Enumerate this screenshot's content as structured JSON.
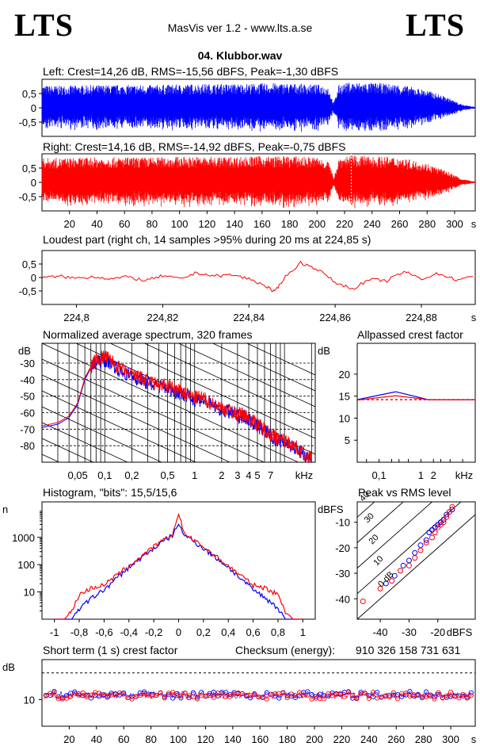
{
  "header": {
    "logo_left": "LTS",
    "logo_right": "LTS",
    "app_title": "MasVis ver 1.2 - www.lts.a.se",
    "file_name": "04. Klubbor.wav"
  },
  "colors": {
    "left": "#0000ff",
    "right": "#ff0000",
    "axis": "#000000"
  },
  "chart_data": [
    {
      "id": "left_waveform",
      "type": "area",
      "title": "Left: Crest=14,26 dB, RMS=-15,56 dBFS, Peak=-1,30 dBFS",
      "yticks": [
        "0,5",
        "0",
        "-0,5"
      ],
      "ylim": [
        -1,
        1
      ],
      "xlim": [
        0,
        315
      ],
      "envelope_points": [
        [
          0,
          0.78
        ],
        [
          20,
          0.78
        ],
        [
          40,
          0.8
        ],
        [
          60,
          0.8
        ],
        [
          80,
          0.8
        ],
        [
          100,
          0.82
        ],
        [
          120,
          0.84
        ],
        [
          140,
          0.84
        ],
        [
          160,
          0.86
        ],
        [
          180,
          0.86
        ],
        [
          200,
          0.82
        ],
        [
          208,
          0.75
        ],
        [
          212,
          0.15
        ],
        [
          216,
          0.82
        ],
        [
          224,
          0.9
        ],
        [
          240,
          0.88
        ],
        [
          260,
          0.82
        ],
        [
          280,
          0.62
        ],
        [
          295,
          0.36
        ],
        [
          305,
          0.12
        ],
        [
          315,
          0.03
        ]
      ],
      "grid": false
    },
    {
      "id": "right_waveform",
      "type": "area",
      "title": "Right: Crest=14,16 dB, RMS=-14,92 dBFS, Peak=-0,75 dBFS",
      "yticks": [
        "0,5",
        "0",
        "-0,5"
      ],
      "ylim": [
        -1,
        1
      ],
      "xlim": [
        0,
        315
      ],
      "xticks": [
        "20",
        "40",
        "60",
        "80",
        "100",
        "120",
        "140",
        "160",
        "180",
        "200",
        "220",
        "240",
        "260",
        "280",
        "300"
      ],
      "x_unit": "s",
      "envelope_points": [
        [
          0,
          0.85
        ],
        [
          20,
          0.86
        ],
        [
          40,
          0.88
        ],
        [
          60,
          0.88
        ],
        [
          80,
          0.88
        ],
        [
          100,
          0.9
        ],
        [
          120,
          0.9
        ],
        [
          140,
          0.9
        ],
        [
          160,
          0.92
        ],
        [
          180,
          0.92
        ],
        [
          200,
          0.88
        ],
        [
          208,
          0.78
        ],
        [
          212,
          0.15
        ],
        [
          216,
          0.88
        ],
        [
          224,
          0.95
        ],
        [
          240,
          0.92
        ],
        [
          260,
          0.88
        ],
        [
          280,
          0.66
        ],
        [
          295,
          0.38
        ],
        [
          305,
          0.12
        ],
        [
          315,
          0.03
        ]
      ],
      "marker_at": 224.85,
      "grid": false
    },
    {
      "id": "loudest_part",
      "type": "line",
      "title": "Loudest part (right ch, 14 samples >95% during 20 ms at 224,85 s)",
      "yticks": [
        "0,5",
        "0",
        "-0,5"
      ],
      "ylim": [
        -1,
        1
      ],
      "xticks": [
        "224,8",
        "224,82",
        "224,84",
        "224,86",
        "224,88"
      ],
      "x_unit": "s",
      "xlim": [
        224.792,
        224.8925
      ],
      "x": [
        224.792,
        224.796,
        224.8,
        224.804,
        224.808,
        224.812,
        224.816,
        224.82,
        224.824,
        224.828,
        224.832,
        224.836,
        224.84,
        224.844,
        224.846,
        224.848,
        224.852,
        224.856,
        224.86,
        224.864,
        224.868,
        224.872,
        224.876,
        224.88,
        224.884,
        224.888,
        224.8925
      ],
      "y": [
        -0.02,
        0.05,
        -0.03,
        0.04,
        -0.05,
        0.02,
        -0.12,
        0.06,
        -0.06,
        0.18,
        0.05,
        0.1,
        -0.05,
        -0.32,
        -0.55,
        -0.05,
        0.55,
        0.3,
        -0.18,
        -0.42,
        -0.08,
        -0.12,
        0.22,
        -0.05,
        0.15,
        -0.08,
        0.02
      ],
      "grid": false
    },
    {
      "id": "spectrum",
      "type": "line",
      "title": "Normalized average spectrum, 320 frames",
      "ylabel": "dB",
      "yticks": [
        "-30",
        "-40",
        "-50",
        "-60",
        "-70",
        "-80"
      ],
      "ylim": [
        -90,
        -18
      ],
      "xlabel": "kHz",
      "xticks": [
        "0,05",
        "0,1",
        "0,2",
        "0,5",
        "1",
        "2",
        "3",
        "4",
        "5",
        "7"
      ],
      "xlim": [
        0.02,
        22
      ],
      "x_scale": "log",
      "grid": true,
      "series": [
        {
          "color": "#0000ff",
          "x": [
            0.02,
            0.03,
            0.04,
            0.05,
            0.06,
            0.07,
            0.08,
            0.1,
            0.12,
            0.15,
            0.2,
            0.25,
            0.3,
            0.4,
            0.5,
            0.6,
            0.7,
            0.8,
            1,
            1.2,
            1.5,
            2,
            2.5,
            3,
            3.5,
            4,
            5,
            6,
            7,
            8,
            10,
            12,
            15,
            20
          ],
          "y": [
            -69,
            -67,
            -63,
            -55,
            -40,
            -33,
            -30,
            -28,
            -30,
            -35,
            -38,
            -40,
            -42,
            -44,
            -45,
            -47,
            -48,
            -50,
            -52,
            -52,
            -55,
            -58,
            -60,
            -62,
            -62,
            -64,
            -68,
            -71,
            -74,
            -76,
            -78,
            -80,
            -84,
            -89
          ]
        },
        {
          "color": "#ff0000",
          "x": [
            0.02,
            0.03,
            0.04,
            0.05,
            0.06,
            0.07,
            0.08,
            0.1,
            0.12,
            0.15,
            0.2,
            0.25,
            0.3,
            0.4,
            0.5,
            0.6,
            0.7,
            0.8,
            1,
            1.2,
            1.5,
            2,
            2.5,
            3,
            3.5,
            4,
            5,
            6,
            7,
            8,
            10,
            12,
            15,
            20
          ],
          "y": [
            -68,
            -66,
            -62,
            -54,
            -39,
            -32,
            -28,
            -26,
            -29,
            -34,
            -37,
            -39,
            -41,
            -43,
            -44,
            -46,
            -47,
            -49,
            -51,
            -51,
            -54,
            -57,
            -59,
            -61,
            -61,
            -63,
            -67,
            -70,
            -73,
            -75,
            -77,
            -79,
            -83,
            -88
          ]
        }
      ]
    },
    {
      "id": "allpassed_crest",
      "type": "line",
      "title": "Allpassed crest factor",
      "ylabel": "dB",
      "yticks": [
        "20",
        "15",
        "10",
        "5"
      ],
      "ylim": [
        0,
        27
      ],
      "xlabel": "kHz",
      "xticks": [
        "0,1",
        "1",
        "2"
      ],
      "x_scale": "log",
      "xlim": [
        0.03,
        20
      ],
      "series": [
        {
          "color": "#0000ff",
          "x": [
            0.03,
            0.25,
            1.5,
            20
          ],
          "y": [
            14.2,
            16.0,
            14.2,
            14.2
          ]
        },
        {
          "color": "#ff0000",
          "x": [
            0.03,
            0.25,
            1.5,
            20
          ],
          "y": [
            14.1,
            15.1,
            14.2,
            14.2
          ]
        }
      ],
      "reference_lines": [
        {
          "y": 14.2,
          "style": "dashed",
          "color": "#ff0000"
        }
      ]
    },
    {
      "id": "histogram",
      "type": "line",
      "title": "Histogram, \"bits\": 15,5/15,6",
      "ylabel": "n",
      "yticks": [
        "1000",
        "100",
        "10"
      ],
      "y_scale": "log",
      "ylim": [
        1,
        20000
      ],
      "xticks": [
        "-1",
        "-0,8",
        "-0,6",
        "-0,4",
        "-0,2",
        "0",
        "0,2",
        "0,4",
        "0,6",
        "0,8",
        "1"
      ],
      "xlim": [
        -1.1,
        1.1
      ],
      "series": [
        {
          "color": "#0000ff",
          "x": [
            -1.0,
            -0.86,
            -0.82,
            -0.7,
            -0.6,
            -0.4,
            -0.2,
            -0.05,
            0,
            0.05,
            0.2,
            0.4,
            0.6,
            0.7,
            0.78,
            0.82,
            0.86,
            1.0
          ],
          "y": [
            1,
            1,
            2,
            6,
            12,
            80,
            400,
            1200,
            3000,
            1200,
            400,
            80,
            12,
            6,
            3,
            2,
            1,
            1
          ]
        },
        {
          "color": "#ff0000",
          "x": [
            -1.0,
            -0.92,
            -0.86,
            -0.8,
            -0.7,
            -0.6,
            -0.4,
            -0.2,
            -0.05,
            0,
            0.05,
            0.2,
            0.4,
            0.6,
            0.7,
            0.8,
            0.86,
            0.92,
            1.0
          ],
          "y": [
            1,
            1,
            2,
            8,
            14,
            18,
            90,
            450,
            1300,
            7000,
            1300,
            450,
            90,
            18,
            14,
            8,
            2,
            1,
            1
          ]
        }
      ]
    },
    {
      "id": "peak_vs_rms",
      "type": "scatter",
      "title": "Peak vs RMS level",
      "ylabel": "dBFS",
      "yticks": [
        "-10",
        "-20",
        "-30",
        "-40"
      ],
      "ylim": [
        -48,
        -2
      ],
      "xlabel": "dBFS",
      "xticks": [
        "-40",
        "-30",
        "-20"
      ],
      "xlim": [
        -48,
        -7
      ],
      "diagonal_labels": [
        "40",
        "30",
        "20",
        "10",
        "0 dB"
      ],
      "series": [
        {
          "color": "#0000ff",
          "x": [
            -38,
            -35,
            -32,
            -30,
            -28,
            -26,
            -24,
            -23,
            -22,
            -21,
            -20,
            -19,
            -18,
            -17,
            -16,
            -15
          ],
          "y": [
            -34,
            -31,
            -27,
            -25,
            -22,
            -19,
            -17,
            -14,
            -13,
            -12,
            -11,
            -10,
            -9,
            -7,
            -6,
            -5
          ]
        },
        {
          "color": "#ff0000",
          "x": [
            -46,
            -40,
            -36,
            -33,
            -30,
            -28,
            -26,
            -24,
            -22,
            -21,
            -20,
            -19,
            -18,
            -17,
            -16,
            -15
          ],
          "y": [
            -41,
            -36,
            -33,
            -29,
            -27,
            -24,
            -21,
            -18,
            -16,
            -14,
            -12,
            -11,
            -10,
            -8,
            -6,
            -4
          ]
        }
      ]
    },
    {
      "id": "short_term_crest",
      "type": "scatter",
      "title": "Short term (1 s) crest factor",
      "ylabel": "dB",
      "yticks": [
        "10"
      ],
      "ylim": [
        0,
        25
      ],
      "xlim": [
        0,
        318
      ],
      "xticks": [
        "20",
        "40",
        "60",
        "80",
        "100",
        "120",
        "140",
        "160",
        "180",
        "200",
        "220",
        "240",
        "260",
        "280",
        "300"
      ],
      "x_unit": "s",
      "reference_lines": [
        {
          "y": 20,
          "style": "dashed",
          "color": "#000000"
        }
      ],
      "series": [
        {
          "color": "#0000ff",
          "mean": 11.8,
          "spread": 1.3
        },
        {
          "color": "#ff0000",
          "mean": 11.5,
          "spread": 1.3
        }
      ]
    }
  ],
  "checksum": {
    "label": "Checksum (energy):",
    "value": "910 326 158 731 631"
  },
  "axis_units": {
    "seconds": "s",
    "khz": "kHz",
    "db": "dB",
    "dbfs": "dBFS",
    "n": "n"
  }
}
